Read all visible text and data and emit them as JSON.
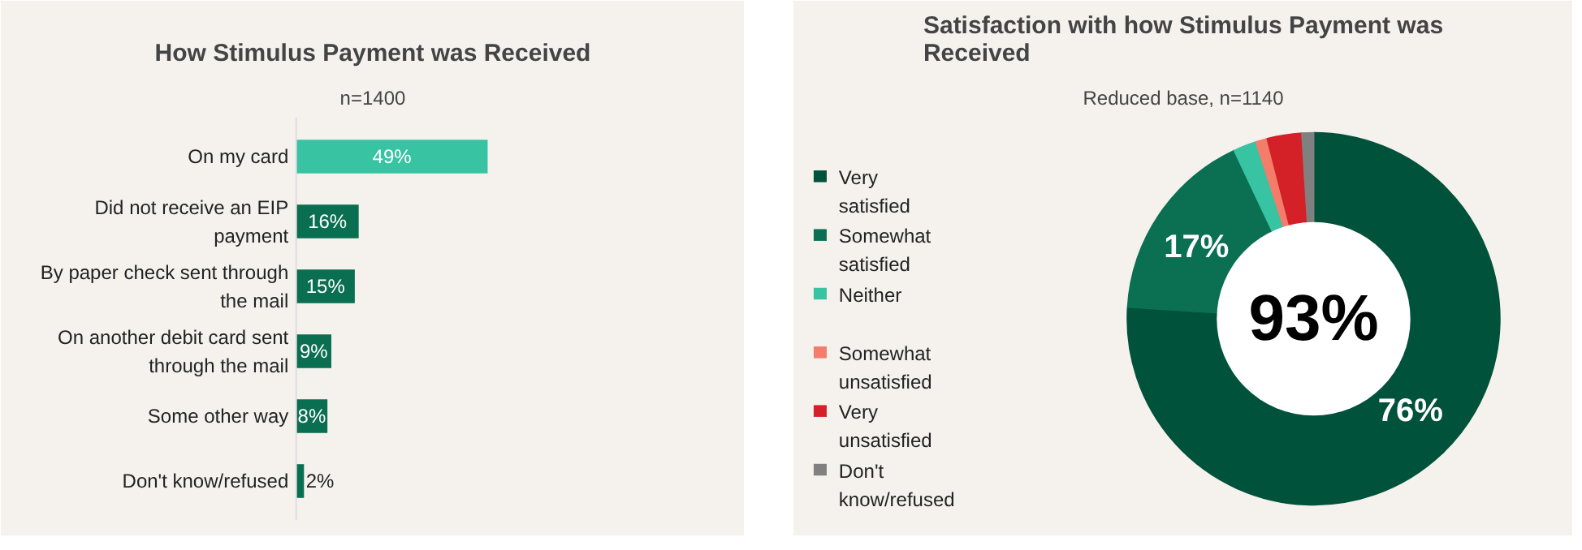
{
  "chart_data": [
    {
      "type": "bar",
      "orientation": "horizontal",
      "title": "How Stimulus Payment was Received",
      "subtitle": "n=1400",
      "categories": [
        "On my card",
        "Did not receive an EIP payment",
        "By paper check sent through the mail",
        "On another debit card sent through the mail",
        "Some other way",
        "Don't know/refused"
      ],
      "values": [
        49,
        16,
        15,
        9,
        8,
        2
      ],
      "colors": [
        "#38c3a3",
        "#0a6e50",
        "#0a6e50",
        "#0a6e50",
        "#0a6e50",
        "#0a6e50"
      ],
      "value_labels": [
        "49%",
        "16%",
        "15%",
        "9%",
        "8%",
        "2%"
      ]
    },
    {
      "type": "donut",
      "title": "Satisfaction with how Stimulus Payment was Received",
      "subtitle": "Reduced base, n=1140",
      "categories": [
        "Very satisfied",
        "Somewhat satisfied",
        "Neither",
        "Somewhat unsatisfied",
        "Very unsatisfied",
        "Don't know/refused"
      ],
      "values": [
        76,
        17,
        2,
        1,
        3,
        1
      ],
      "colors": [
        "#00523b",
        "#0b7052",
        "#38c3a3",
        "#f47c6a",
        "#d42027",
        "#808080"
      ],
      "value_labels": [
        "76%",
        "17%",
        null,
        null,
        null,
        null
      ],
      "annotations": [
        "93%"
      ],
      "legend": "left"
    }
  ]
}
